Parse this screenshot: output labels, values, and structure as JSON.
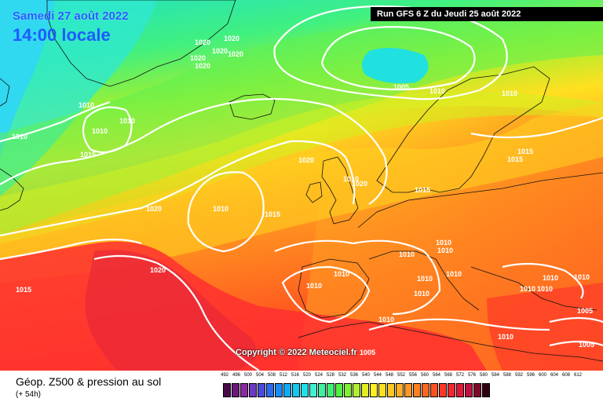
{
  "header": {
    "date": "Samedi 27 août 2022",
    "time": "14:00 locale",
    "run": "Run GFS 6 Z du Jeudi 25 août 2022"
  },
  "copyright": "Copyright © 2022 Meteociel.fr",
  "footer": {
    "title": "Géop. Z500 & pression au sol",
    "subtitle": "(+ 54h)"
  },
  "legend": {
    "values": [
      "492",
      "496",
      "500",
      "504",
      "508",
      "512",
      "516",
      "520",
      "524",
      "528",
      "532",
      "536",
      "540",
      "544",
      "548",
      "552",
      "556",
      "560",
      "564",
      "568",
      "572",
      "576",
      "580",
      "584",
      "588",
      "592",
      "596",
      "600",
      "604",
      "608",
      "612"
    ],
    "colors": [
      "#4a0a4a",
      "#6a1a7a",
      "#8a2aa0",
      "#6a3ac0",
      "#4a4ae0",
      "#2a6af0",
      "#1a8af8",
      "#10aaf8",
      "#10c8f0",
      "#20e0e8",
      "#40f0d0",
      "#40f0a0",
      "#40f070",
      "#50f040",
      "#80f030",
      "#b0f030",
      "#e0f020",
      "#fff020",
      "#ffe020",
      "#ffc820",
      "#ffb020",
      "#ff9820",
      "#ff8020",
      "#ff6820",
      "#ff5020",
      "#ff3828",
      "#f02830",
      "#e01838",
      "#c01040",
      "#800828",
      "#300010"
    ]
  },
  "pressure_labels": [
    {
      "text": "1020",
      "lx": 258,
      "ly": 57
    },
    {
      "text": "1020",
      "lx": 295,
      "ly": 52
    },
    {
      "text": "1020",
      "lx": 280,
      "ly": 68
    },
    {
      "text": "1020",
      "lx": 252,
      "ly": 77
    },
    {
      "text": "1020",
      "lx": 300,
      "ly": 72
    },
    {
      "text": "1020",
      "lx": 258,
      "ly": 87
    },
    {
      "text": "1005",
      "lx": 511,
      "ly": 114
    },
    {
      "text": "1010",
      "lx": 557,
      "ly": 119
    },
    {
      "text": "1010",
      "lx": 649,
      "ly": 122
    },
    {
      "text": "1010",
      "lx": 110,
      "ly": 137
    },
    {
      "text": "1010",
      "lx": 162,
      "ly": 157
    },
    {
      "text": "1010",
      "lx": 127,
      "ly": 170
    },
    {
      "text": "1010",
      "lx": 25,
      "ly": 177
    },
    {
      "text": "1015",
      "lx": 112,
      "ly": 200
    },
    {
      "text": "1020",
      "lx": 390,
      "ly": 207
    },
    {
      "text": "1015",
      "lx": 669,
      "ly": 196
    },
    {
      "text": "1015",
      "lx": 656,
      "ly": 206
    },
    {
      "text": "1010",
      "lx": 447,
      "ly": 231
    },
    {
      "text": "1020",
      "lx": 458,
      "ly": 237
    },
    {
      "text": "1015",
      "lx": 538,
      "ly": 245
    },
    {
      "text": "1020",
      "lx": 196,
      "ly": 269
    },
    {
      "text": "1010",
      "lx": 281,
      "ly": 269
    },
    {
      "text": "1015",
      "lx": 347,
      "ly": 276
    },
    {
      "text": "1010",
      "lx": 565,
      "ly": 312
    },
    {
      "text": "1010",
      "lx": 518,
      "ly": 327
    },
    {
      "text": "1010",
      "lx": 567,
      "ly": 322
    },
    {
      "text": "1020",
      "lx": 201,
      "ly": 347
    },
    {
      "text": "1010",
      "lx": 435,
      "ly": 352
    },
    {
      "text": "1010",
      "lx": 578,
      "ly": 352
    },
    {
      "text": "1010",
      "lx": 541,
      "ly": 358
    },
    {
      "text": "1010",
      "lx": 701,
      "ly": 357
    },
    {
      "text": "1010",
      "lx": 741,
      "ly": 356
    },
    {
      "text": "1010",
      "lx": 400,
      "ly": 367
    },
    {
      "text": "1010",
      "lx": 672,
      "ly": 371
    },
    {
      "text": "1010",
      "lx": 694,
      "ly": 371
    },
    {
      "text": "1015",
      "lx": 30,
      "ly": 372
    },
    {
      "text": "1010",
      "lx": 537,
      "ly": 377
    },
    {
      "text": "1005",
      "lx": 745,
      "ly": 399
    },
    {
      "text": "1010",
      "lx": 492,
      "ly": 410
    },
    {
      "text": "1010",
      "lx": 644,
      "ly": 432
    },
    {
      "text": "1005",
      "lx": 747,
      "ly": 442
    },
    {
      "text": "1005",
      "lx": 468,
      "ly": 452
    }
  ]
}
